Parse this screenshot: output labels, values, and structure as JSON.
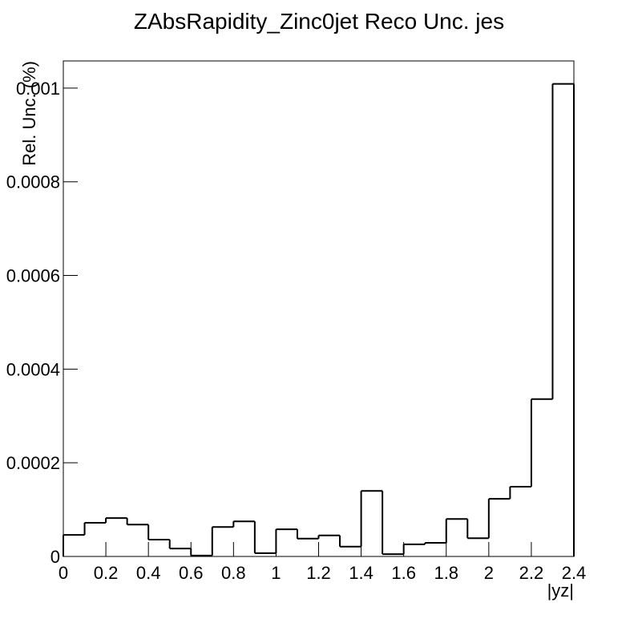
{
  "chart_data": {
    "type": "histogram",
    "title": "ZAbsRapidity_Zinc0jet Reco Unc. jes",
    "x_label": "|yz|",
    "y_label": "Rel. Unc. (%)",
    "bins": [
      0,
      0.1,
      0.2,
      0.3,
      0.4,
      0.5,
      0.6,
      0.7,
      0.8,
      0.9,
      1,
      1.1,
      1.2,
      1.3,
      1.4,
      1.5,
      1.6,
      1.7,
      1.8,
      1.9,
      2,
      2.1,
      2.2,
      2.3,
      2.4
    ],
    "values": [
      4.6e-05,
      7.2e-05,
      8.2e-05,
      6.8e-05,
      3.6e-05,
      1.7e-05,
      2e-06,
      6.3e-05,
      7.5e-05,
      7e-06,
      5.8e-05,
      3.8e-05,
      4.5e-05,
      2.1e-05,
      0.00014,
      5e-06,
      2.6e-05,
      2.9e-05,
      8e-05,
      3.9e-05,
      0.000123,
      0.000149,
      0.000336,
      0.001009
    ],
    "color": "#000000",
    "xlim": [
      0,
      2.4
    ],
    "xticks": [
      0,
      0.2,
      0.4,
      0.6,
      0.8,
      1,
      1.2,
      1.4,
      1.6,
      1.8,
      2,
      2.2,
      2.4
    ],
    "ylim": [
      0,
      0.001058
    ],
    "yticks": [
      0,
      0.0002,
      0.0004,
      0.0006,
      0.0008,
      0.001
    ]
  }
}
